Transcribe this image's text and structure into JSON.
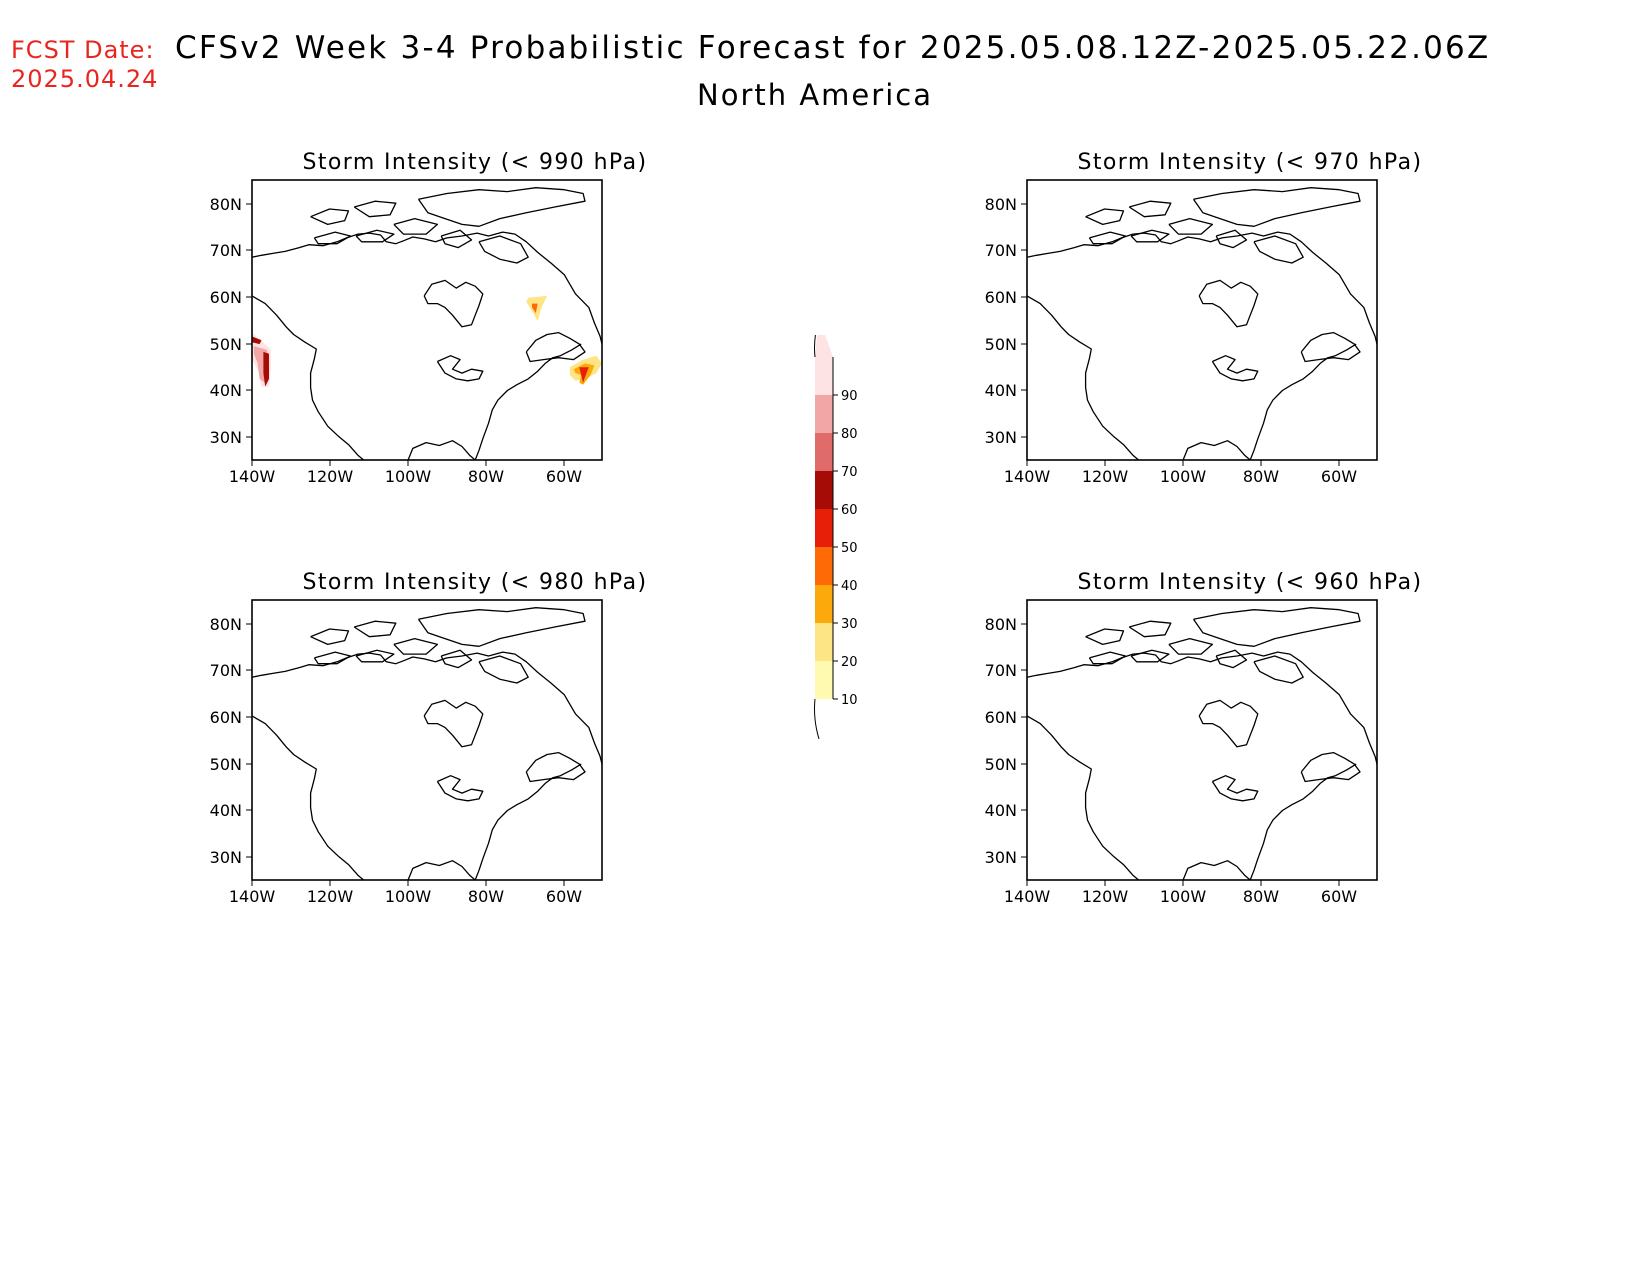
{
  "header": {
    "fcst_label": "FCST Date:",
    "fcst_date": "2025.04.24",
    "title": "CFSv2 Week 3-4 Probabilistic Forecast for 2025.05.08.12Z-2025.05.22.06Z",
    "subtitle": "North America"
  },
  "panels": [
    {
      "title": "Storm Intensity (< 990 hPa)",
      "has_signal": true
    },
    {
      "title": "Storm Intensity (< 970 hPa)",
      "has_signal": false
    },
    {
      "title": "Storm Intensity (< 980 hPa)",
      "has_signal": false
    },
    {
      "title": "Storm Intensity (< 960 hPa)",
      "has_signal": false
    }
  ],
  "axes": {
    "lat_labels": [
      "80N",
      "70N",
      "60N",
      "50N",
      "40N",
      "30N"
    ],
    "lon_labels": [
      "140W",
      "120W",
      "100W",
      "80W",
      "60W"
    ]
  },
  "colorbar": {
    "levels": [
      "10",
      "20",
      "30",
      "40",
      "50",
      "60",
      "70",
      "80",
      "90"
    ],
    "colors": [
      "#fffab0",
      "#fde585",
      "#fca90c",
      "#fe6a05",
      "#e81f08",
      "#a60c06",
      "#e06b6b",
      "#f3a6a6",
      "#fde3e3"
    ]
  }
}
